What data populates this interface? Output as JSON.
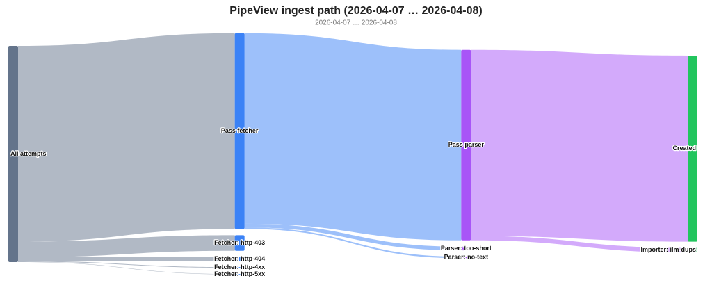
{
  "chart_data": {
    "type": "sankey",
    "title": "PipeView ingest path (2026-04-07 … 2026-04-08)",
    "subtitle": "2026-04-07 … 2026-04-08",
    "nodes": [
      {
        "name": "All attempts",
        "color": "#64748b"
      },
      {
        "name": "Pass fetcher",
        "color": "#3b82f6"
      },
      {
        "name": "Fetcher: http-403",
        "color": "#3b82f6"
      },
      {
        "name": "Fetcher: http-404",
        "color": "#3b82f6"
      },
      {
        "name": "Fetcher: http-4xx",
        "color": "#3b82f6"
      },
      {
        "name": "Fetcher: http-5xx",
        "color": "#3b82f6"
      },
      {
        "name": "Pass parser",
        "color": "#a855f7"
      },
      {
        "name": "Parser: too-short",
        "color": "#a855f7"
      },
      {
        "name": "Parser: no-text",
        "color": "#a855f7"
      },
      {
        "name": "Created",
        "color": "#22c55e"
      },
      {
        "name": "Importer: ilm-dups",
        "color": "#22c55e"
      }
    ],
    "links": [
      {
        "source": 0,
        "target": 1,
        "value": 2630
      },
      {
        "source": 0,
        "target": 2,
        "value": 210
      },
      {
        "source": 0,
        "target": 3,
        "value": 50
      },
      {
        "source": 0,
        "target": 4,
        "value": 10
      },
      {
        "source": 0,
        "target": 5,
        "value": 5
      },
      {
        "source": 1,
        "target": 6,
        "value": 2560
      },
      {
        "source": 1,
        "target": 7,
        "value": 50
      },
      {
        "source": 1,
        "target": 8,
        "value": 20
      },
      {
        "source": 6,
        "target": 9,
        "value": 2500
      },
      {
        "source": 6,
        "target": 10,
        "value": 60
      }
    ]
  }
}
